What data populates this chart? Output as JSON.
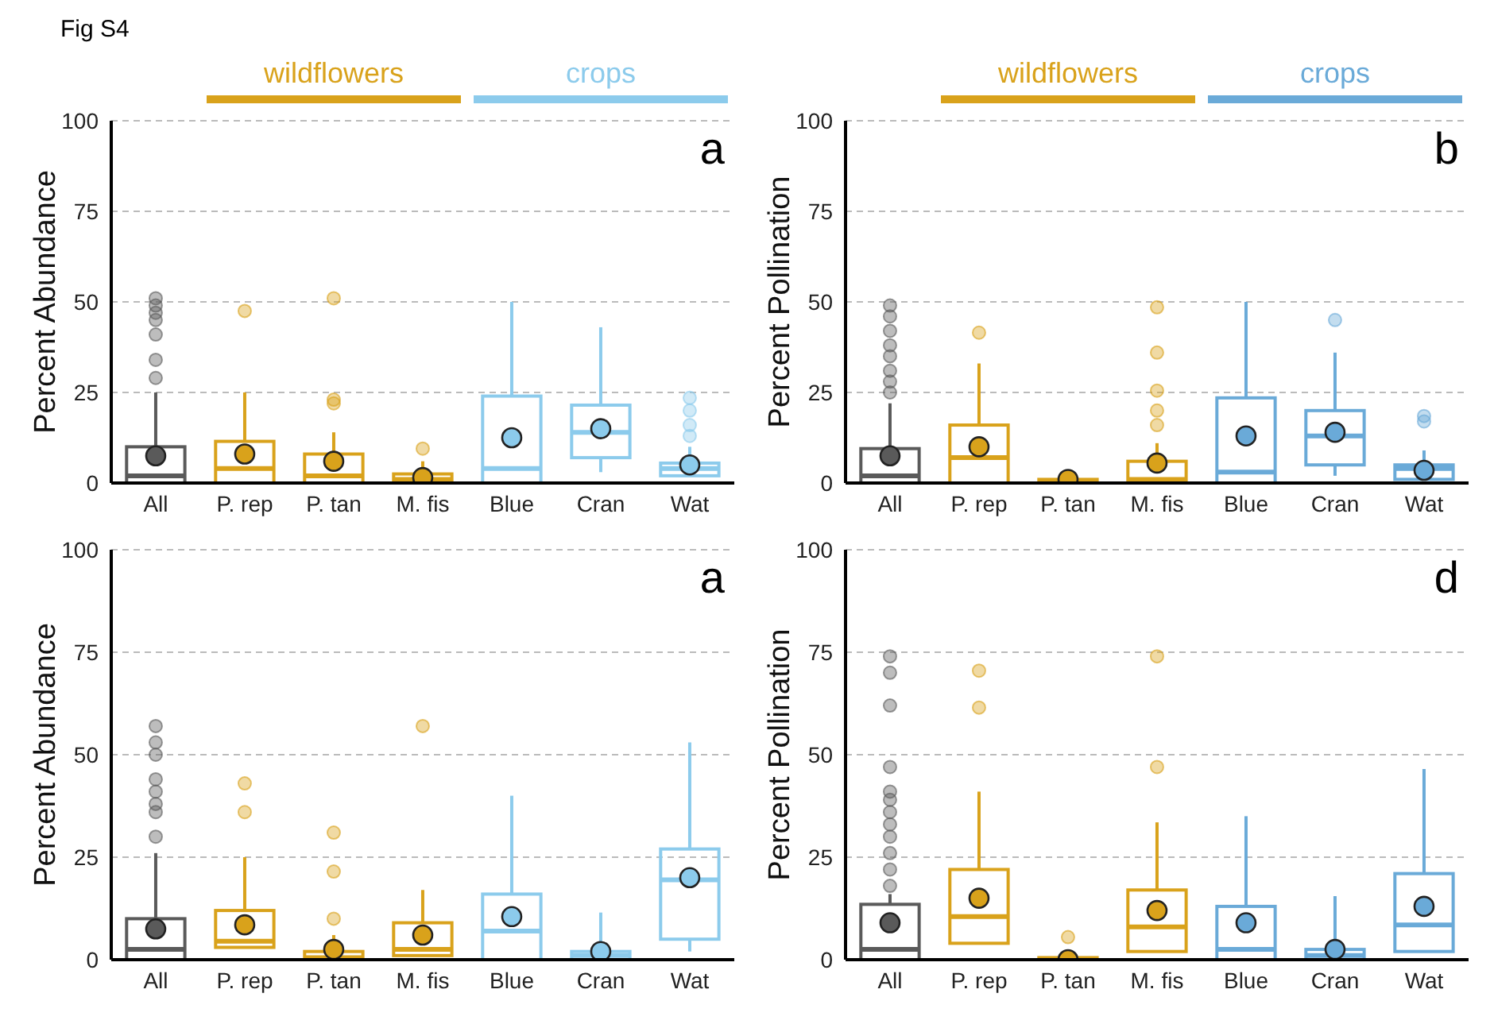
{
  "chart_data": [
    {
      "type": "box",
      "title": "Fig S4",
      "ylabel": "Percent Abundance",
      "categories": [
        "All",
        "P. rep",
        "P. tan",
        "M. fis",
        "Blue",
        "Cran",
        "Wat"
      ],
      "colors": [
        "#5a5a5a",
        "#d9a21b",
        "#d9a21b",
        "#d9a21b",
        "#8ccbec",
        "#8ccbec",
        "#8ccbec"
      ],
      "ylim": [
        0,
        100
      ],
      "yticks": [
        0,
        25,
        50,
        75,
        100
      ],
      "grid": "y",
      "annotations": [
        "wildflowers",
        "crops",
        "a"
      ],
      "boxes": [
        {
          "low": 0,
          "q1": 0,
          "median": 2,
          "q3": 10,
          "high": 25,
          "mean": 7.5,
          "outliers": [
            29,
            34,
            41,
            45,
            47,
            49,
            51
          ]
        },
        {
          "low": 0,
          "q1": 0,
          "median": 4,
          "q3": 11.5,
          "high": 25,
          "mean": 8,
          "outliers": [
            47.5
          ]
        },
        {
          "low": 0,
          "q1": 0,
          "median": 2,
          "q3": 8,
          "high": 14,
          "mean": 6,
          "outliers": [
            22,
            23,
            51
          ]
        },
        {
          "low": 0,
          "q1": 0,
          "median": 1,
          "q3": 2.5,
          "high": 6,
          "mean": 1.5,
          "outliers": [
            9.5
          ]
        },
        {
          "low": 0,
          "q1": 0,
          "median": 4,
          "q3": 24,
          "high": 50,
          "mean": 12.5
        },
        {
          "low": 3,
          "q1": 7,
          "median": 14,
          "q3": 21.5,
          "high": 43,
          "mean": 15
        },
        {
          "low": 2,
          "q1": 2,
          "median": 4,
          "q3": 5.5,
          "high": 10,
          "mean": 5,
          "outliers": [
            13,
            16,
            20,
            23.5
          ]
        }
      ]
    },
    {
      "type": "box",
      "ylabel": "Percent Pollination",
      "categories": [
        "All",
        "P. rep",
        "P. tan",
        "M. fis",
        "Blue",
        "Cran",
        "Wat"
      ],
      "colors": [
        "#5a5a5a",
        "#d9a21b",
        "#d9a21b",
        "#d9a21b",
        "#6aaad8",
        "#6aaad8",
        "#6aaad8"
      ],
      "ylim": [
        0,
        100
      ],
      "yticks": [
        0,
        25,
        50,
        75,
        100
      ],
      "grid": "y",
      "annotations": [
        "wildflowers",
        "crops",
        "b"
      ],
      "boxes": [
        {
          "low": 0,
          "q1": 0,
          "median": 2,
          "q3": 9.5,
          "high": 22,
          "mean": 7.5,
          "outliers": [
            25,
            28,
            31,
            35,
            38,
            42,
            46,
            49
          ]
        },
        {
          "low": 0,
          "q1": 0,
          "median": 7,
          "q3": 16,
          "high": 33,
          "mean": 10,
          "outliers": [
            41.5
          ]
        },
        {
          "low": 0,
          "q1": 0,
          "median": 0.3,
          "q3": 1,
          "high": 2,
          "mean": 1
        },
        {
          "low": 0,
          "q1": 0,
          "median": 1,
          "q3": 6,
          "high": 11,
          "mean": 5.5,
          "outliers": [
            16,
            20,
            25.5,
            36,
            48.5
          ]
        },
        {
          "low": 0,
          "q1": 0,
          "median": 3,
          "q3": 23.5,
          "high": 50,
          "mean": 13
        },
        {
          "low": 2,
          "q1": 5,
          "median": 13,
          "q3": 20,
          "high": 36,
          "mean": 14,
          "outliers": [
            45
          ]
        },
        {
          "low": 1,
          "q1": 1,
          "median": 4,
          "q3": 5,
          "high": 9,
          "mean": 3.5,
          "outliers": [
            17,
            18.5
          ]
        }
      ]
    },
    {
      "type": "box",
      "ylabel": "Percent Abundance",
      "categories": [
        "All",
        "P. rep",
        "P. tan",
        "M. fis",
        "Blue",
        "Cran",
        "Wat"
      ],
      "colors": [
        "#5a5a5a",
        "#d9a21b",
        "#d9a21b",
        "#d9a21b",
        "#8ccbec",
        "#8ccbec",
        "#8ccbec"
      ],
      "ylim": [
        0,
        100
      ],
      "yticks": [
        0,
        25,
        50,
        75,
        100
      ],
      "grid": "y",
      "annotations": [
        "a"
      ],
      "boxes": [
        {
          "low": 0,
          "q1": 0,
          "median": 2.5,
          "q3": 10,
          "high": 26,
          "mean": 7.5,
          "outliers": [
            30,
            36,
            38,
            41,
            44,
            50,
            53,
            57
          ]
        },
        {
          "low": 3,
          "q1": 3,
          "median": 4.5,
          "q3": 12,
          "high": 25,
          "mean": 8.5,
          "outliers": [
            36,
            43
          ]
        },
        {
          "low": 0,
          "q1": 0,
          "median": 0.5,
          "q3": 2,
          "high": 6,
          "mean": 2.5,
          "outliers": [
            10,
            21.5,
            31
          ]
        },
        {
          "low": 1,
          "q1": 1,
          "median": 2.5,
          "q3": 9,
          "high": 17,
          "mean": 6,
          "outliers": [
            57
          ]
        },
        {
          "low": 0,
          "q1": 0,
          "median": 7,
          "q3": 16,
          "high": 40,
          "mean": 10.5
        },
        {
          "low": 0,
          "q1": 0,
          "median": 1,
          "q3": 2,
          "high": 11.5,
          "mean": 2
        },
        {
          "low": 2,
          "q1": 5,
          "median": 19.5,
          "q3": 27,
          "high": 53,
          "mean": 20
        }
      ]
    },
    {
      "type": "box",
      "ylabel": "Percent Pollination",
      "categories": [
        "All",
        "P. rep",
        "P. tan",
        "M. fis",
        "Blue",
        "Cran",
        "Wat"
      ],
      "colors": [
        "#5a5a5a",
        "#d9a21b",
        "#d9a21b",
        "#d9a21b",
        "#6aaad8",
        "#6aaad8",
        "#6aaad8"
      ],
      "ylim": [
        0,
        100
      ],
      "yticks": [
        0,
        25,
        50,
        75,
        100
      ],
      "grid": "y",
      "annotations": [
        "d"
      ],
      "boxes": [
        {
          "low": 0,
          "q1": 0,
          "median": 2.5,
          "q3": 13.5,
          "high": 16,
          "mean": 9,
          "outliers": [
            18,
            22,
            26,
            30,
            33,
            36,
            39,
            41,
            47,
            62,
            70,
            74
          ]
        },
        {
          "low": 4,
          "q1": 4,
          "median": 10.5,
          "q3": 22,
          "high": 41,
          "mean": 15,
          "outliers": [
            61.5,
            70.5
          ]
        },
        {
          "low": 0,
          "q1": 0,
          "median": 0,
          "q3": 0.5,
          "high": 1,
          "mean": 0,
          "outliers": [
            5.5
          ]
        },
        {
          "low": 2,
          "q1": 2,
          "median": 8,
          "q3": 17,
          "high": 33.5,
          "mean": 12,
          "outliers": [
            47,
            74
          ]
        },
        {
          "low": 0,
          "q1": 0,
          "median": 2.5,
          "q3": 13,
          "high": 35,
          "mean": 9
        },
        {
          "low": 0,
          "q1": 0,
          "median": 1,
          "q3": 2.5,
          "high": 15.5,
          "mean": 2.5
        },
        {
          "low": 2,
          "q1": 2,
          "median": 8.5,
          "q3": 21,
          "high": 46.5,
          "mean": 13
        }
      ]
    }
  ]
}
